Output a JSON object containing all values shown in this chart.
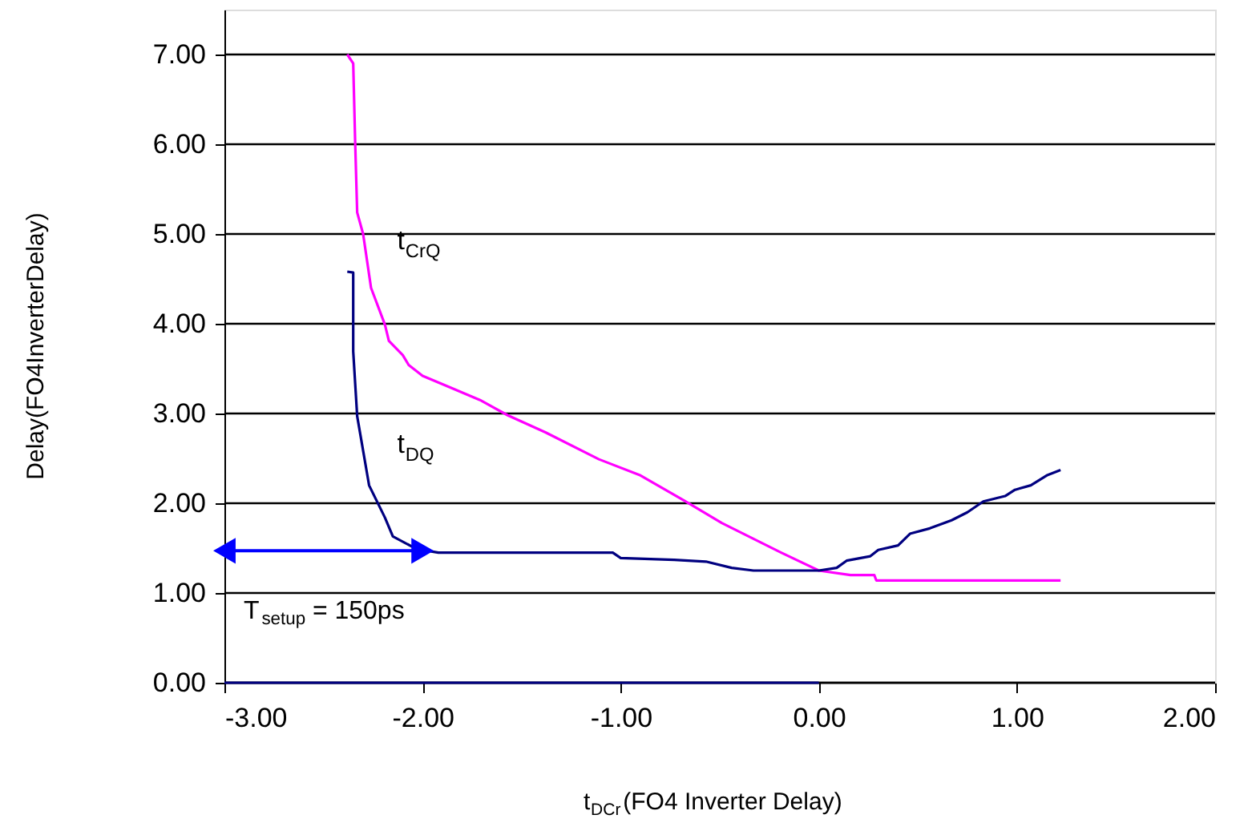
{
  "chart_data": {
    "type": "line",
    "xlabel": "t$_{DCr}$(FO4 Inverter Delay)",
    "ylabel": "Delay(FO4InverterDelay)",
    "xlim": [
      -3,
      2
    ],
    "ylim": [
      0,
      7.5
    ],
    "xticks": [
      {
        "value": -3,
        "label": "-3.00"
      },
      {
        "value": -2,
        "label": "-2.00"
      },
      {
        "value": -1,
        "label": "-1.00"
      },
      {
        "value": 0,
        "label": "0.00"
      },
      {
        "value": 1,
        "label": "1.00"
      },
      {
        "value": 2,
        "label": "2.00"
      }
    ],
    "yticks": [
      {
        "value": 0,
        "label": "0.00"
      },
      {
        "value": 1,
        "label": "1.00"
      },
      {
        "value": 2,
        "label": "2.00"
      },
      {
        "value": 3,
        "label": "3.00"
      },
      {
        "value": 4,
        "label": "4.00"
      },
      {
        "value": 5,
        "label": "5.00"
      },
      {
        "value": 6,
        "label": "6.00"
      },
      {
        "value": 7,
        "label": "7.00"
      }
    ],
    "grid": "y",
    "marker": "none",
    "line_style": "solid",
    "series": [
      {
        "color": "#000080",
        "x": [
          -3,
          0
        ],
        "values": [
          0,
          0
        ]
      },
      {
        "name": "t$_{CrQ}$",
        "color": "#ff00ff",
        "x": [
          -2.38,
          -2.35,
          -2.34,
          -2.33,
          -2.3,
          -2.26,
          -2.19,
          -2.17,
          -2.1,
          -2.07,
          -2.0,
          -1.87,
          -1.71,
          -1.57,
          -1.38,
          -1.11,
          -0.9,
          -0.68,
          -0.49,
          -0.19,
          0.0,
          0.16,
          0.28,
          0.29,
          1.22
        ],
        "values": [
          7.0,
          6.9,
          6.01,
          5.24,
          5.0,
          4.4,
          3.99,
          3.81,
          3.65,
          3.54,
          3.42,
          3.3,
          3.15,
          2.98,
          2.79,
          2.49,
          2.31,
          2.03,
          1.78,
          1.45,
          1.25,
          1.2,
          1.2,
          1.14,
          1.14
        ]
      },
      {
        "name": "t$_{DQ}$",
        "color": "#000080",
        "x": [
          -2.38,
          -2.35,
          -2.35,
          -2.33,
          -2.27,
          -2.19,
          -2.15,
          -2.03,
          -1.92,
          -1.04,
          -1.0,
          -0.73,
          -0.57,
          -0.44,
          -0.33,
          0.0,
          0.09,
          0.14,
          0.26,
          0.3,
          0.4,
          0.46,
          0.56,
          0.67,
          0.75,
          0.83,
          0.94,
          0.99,
          1.07,
          1.15,
          1.22
        ],
        "values": [
          4.58,
          4.57,
          3.69,
          2.97,
          2.2,
          1.84,
          1.63,
          1.49,
          1.45,
          1.45,
          1.39,
          1.37,
          1.35,
          1.28,
          1.25,
          1.25,
          1.28,
          1.36,
          1.41,
          1.48,
          1.53,
          1.66,
          1.72,
          1.81,
          1.9,
          2.02,
          2.08,
          2.15,
          2.2,
          2.31,
          2.37
        ]
      },
      {
        "color": "#0000ff",
        "marker": "triangle",
        "x": [
          -3,
          -2.0
        ],
        "values": [
          1.47,
          1.47
        ]
      }
    ],
    "annotations": [
      "T$_{setup}$ = 150ps"
    ]
  }
}
